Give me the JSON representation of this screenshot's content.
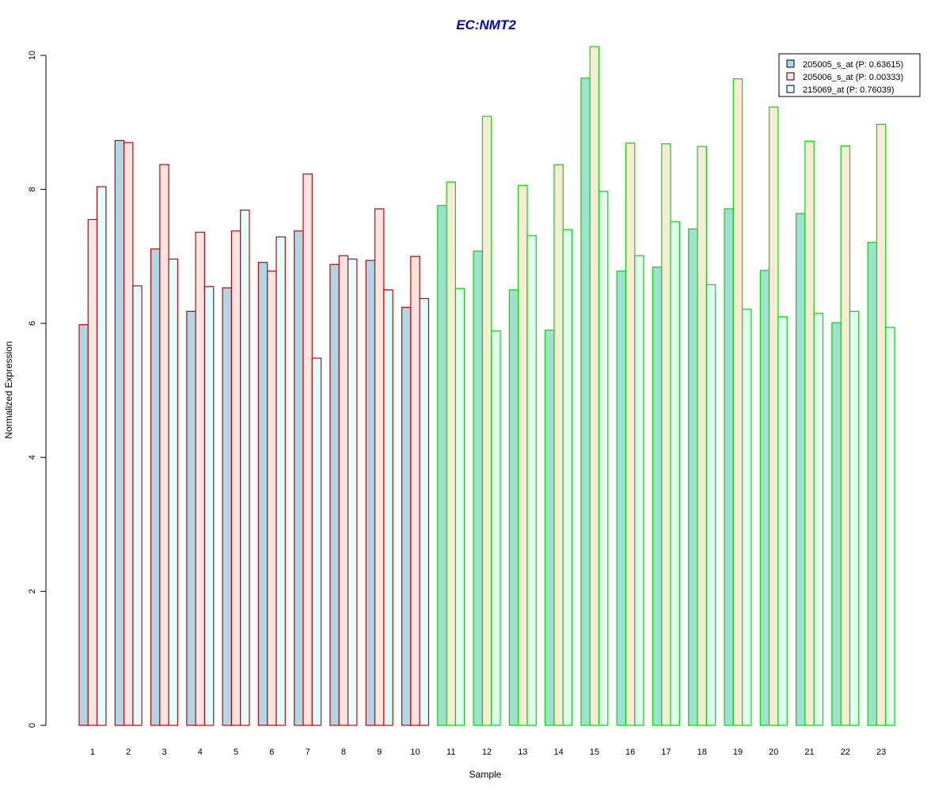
{
  "chart_data": {
    "type": "bar",
    "title": "EC:NMT2",
    "title_color": "#0000CC",
    "xlabel": "Sample",
    "ylabel": "Normalized Expression",
    "ylim": [
      0,
      10
    ],
    "yticks": [
      0,
      2,
      4,
      6,
      8,
      10
    ],
    "grid": false,
    "legend_position": "top-right",
    "categories": [
      "1",
      "2",
      "3",
      "4",
      "5",
      "6",
      "7",
      "8",
      "9",
      "10",
      "11",
      "12",
      "13",
      "14",
      "15",
      "16",
      "17",
      "18",
      "19",
      "20",
      "21",
      "22",
      "23"
    ],
    "group_outline_colors": [
      "#CC0000",
      "#CC0000",
      "#CC0000",
      "#CC0000",
      "#CC0000",
      "#CC0000",
      "#CC0000",
      "#CC0000",
      "#CC0000",
      "#CC0000",
      "#00DD00",
      "#00DD00",
      "#00DD00",
      "#00DD00",
      "#00DD00",
      "#00DD00",
      "#00DD00",
      "#00DD00",
      "#00DD00",
      "#00DD00",
      "#00DD00",
      "#00DD00",
      "#00DD00"
    ],
    "group_fill_colors": {
      "red_group": [
        "#ADD8E6",
        "#FFE4E1",
        "#E0FFFF"
      ],
      "green_group": [
        "#A0E0D0",
        "#FAEBD7",
        "#E0FFF0"
      ]
    },
    "series": [
      {
        "name": "205005_s_at (P: 0.63615)",
        "legend_fill": "#ADD8E6",
        "values": [
          5.98,
          8.73,
          7.11,
          6.18,
          6.53,
          6.91,
          7.38,
          6.88,
          6.94,
          6.24,
          7.76,
          7.08,
          6.5,
          5.9,
          9.66,
          6.78,
          6.84,
          7.41,
          7.71,
          6.79,
          7.64,
          6.01,
          7.21
        ]
      },
      {
        "name": "205006_s_at (P: 0.00333)",
        "legend_fill": "#FFE4E1",
        "values": [
          7.55,
          8.7,
          8.37,
          7.36,
          7.38,
          6.78,
          8.23,
          7.01,
          7.71,
          7.0,
          8.11,
          9.09,
          8.06,
          8.37,
          10.13,
          8.69,
          8.68,
          8.64,
          9.65,
          9.23,
          8.72,
          8.65,
          8.97
        ]
      },
      {
        "name": "215069_at (P: 0.76039)",
        "legend_fill": "#E0FFFF",
        "values": [
          8.04,
          6.56,
          6.96,
          6.55,
          7.69,
          7.29,
          5.48,
          6.96,
          6.5,
          6.37,
          6.52,
          5.89,
          7.31,
          7.4,
          7.97,
          7.01,
          7.52,
          6.58,
          6.21,
          6.1,
          6.15,
          6.18,
          5.94
        ]
      }
    ]
  }
}
